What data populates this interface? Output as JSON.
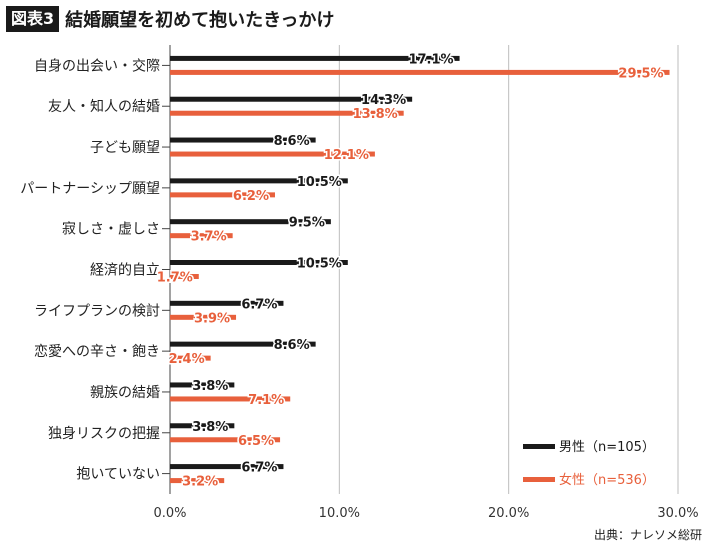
{
  "header": {
    "label": "図表3",
    "title": "結婚願望を初めて抱いたきっかけ"
  },
  "source": "出典：ナレソメ総研",
  "chart_data": {
    "type": "bar",
    "orientation": "horizontal",
    "categories": [
      "自身の出会い・交際",
      "友人・知人の結婚",
      "子ども願望",
      "パートナーシップ願望",
      "寂しさ・虚しさ",
      "経済的自立",
      "ライフプランの検討",
      "恋愛への辛さ・飽き",
      "親族の結婚",
      "独身リスクの把握",
      "抱いていない"
    ],
    "series": [
      {
        "name": "男性（n=105）",
        "color": "#1a1a1a",
        "values": [
          17.1,
          14.3,
          8.6,
          10.5,
          9.5,
          10.5,
          6.7,
          8.6,
          3.8,
          3.8,
          6.7
        ]
      },
      {
        "name": "女性（n=536）",
        "color": "#e8603c",
        "values": [
          29.5,
          13.8,
          12.1,
          6.2,
          3.7,
          1.7,
          3.9,
          2.4,
          7.1,
          6.5,
          3.2
        ]
      }
    ],
    "xlim": [
      0,
      30
    ],
    "xticks": [
      "0.0%",
      "10.0%",
      "20.0%",
      "30.0%"
    ],
    "value_suffix": "%",
    "grid": true,
    "legend_position": "bottom-right"
  }
}
